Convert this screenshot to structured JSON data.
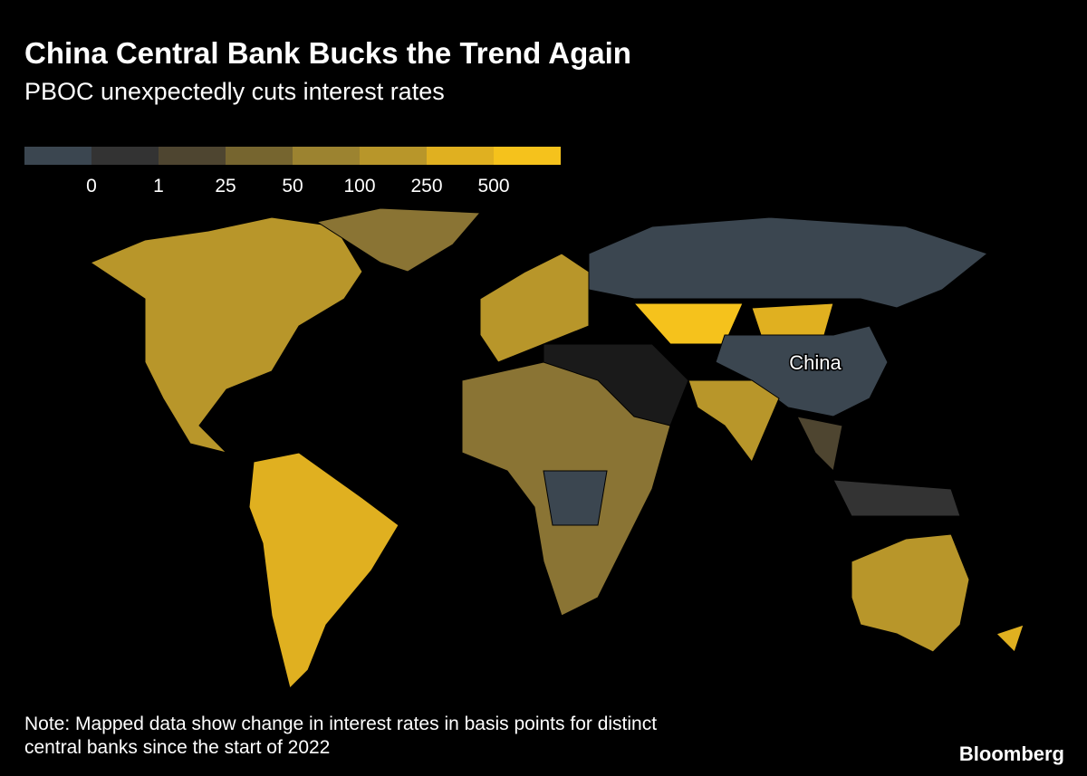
{
  "header": {
    "title": "China Central Bank Bucks the Trend Again",
    "subtitle": "PBOC unexpectedly cuts interest rates"
  },
  "legend": {
    "colors": [
      "#3b4650",
      "#333333",
      "#4e4530",
      "#76652f",
      "#9c8330",
      "#b8962a",
      "#e0b020",
      "#f5c21c"
    ],
    "ticks": [
      0,
      1,
      25,
      50,
      100,
      250,
      500
    ]
  },
  "map": {
    "annotation": "China"
  },
  "footer": {
    "note_lines": [
      "Note: Mapped data show change in interest rates in basis points for distinct",
      "central banks since the start of 2022"
    ],
    "source": "Bloomberg"
  }
}
